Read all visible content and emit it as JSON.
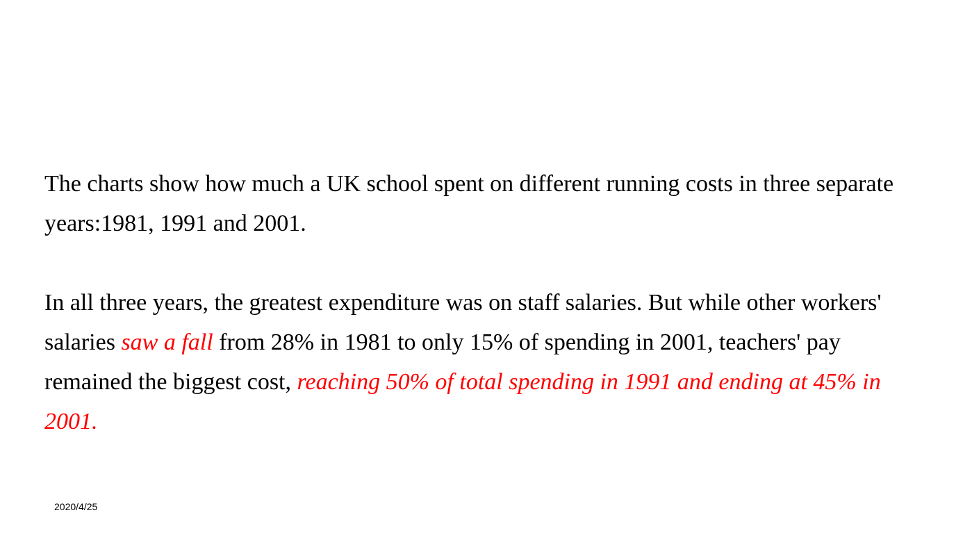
{
  "slide": {
    "paragraph1": "The charts show how much a UK school spent on different running costs in three separate years:1981, 1991 and 2001.",
    "paragraph2": {
      "part1": "In all three years, the greatest expenditure was on staff salaries. But while other workers' salaries ",
      "highlight1": "saw a fall",
      "part2": " from 28% in 1981 to only 15% of spending in 2001, teachers' pay remained the biggest cost, ",
      "highlight2": "reaching 50% of total spending in 1991 and ending at 45% in 2001."
    },
    "date": "2020/4/25"
  },
  "colors": {
    "text": "#000000",
    "highlight": "#ff0000",
    "background": "#ffffff"
  }
}
